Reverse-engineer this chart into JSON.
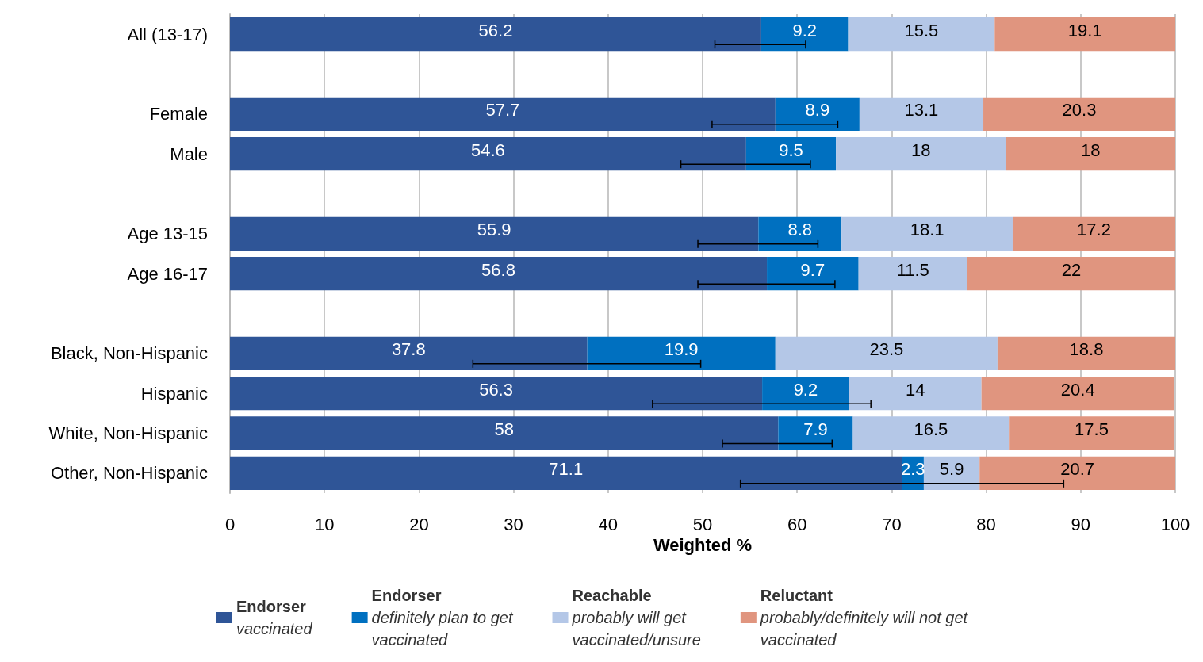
{
  "chart_data": {
    "type": "bar",
    "orientation": "horizontal",
    "stacked": true,
    "xlabel": "Weighted %",
    "categories": [
      "All (13-17)",
      null,
      "Female",
      "Male",
      null,
      "Age 13-15",
      "Age 16-17",
      null,
      "Black, Non-Hispanic",
      "Hispanic",
      "White, Non-Hispanic",
      "Other, Non-Hispanic"
    ],
    "series": [
      {
        "name": "Endorser\nvaccinated",
        "color": "#2f5597",
        "values": [
          56.2,
          null,
          57.7,
          54.6,
          null,
          55.9,
          56.8,
          null,
          37.8,
          56.3,
          58,
          71.1
        ],
        "errors": [
          [
            51.3,
            60.9
          ],
          null,
          [
            51.0,
            64.3
          ],
          [
            47.7,
            61.4
          ],
          null,
          [
            49.5,
            62.2
          ],
          [
            49.5,
            64.0
          ],
          null,
          [
            25.7,
            49.8
          ],
          [
            44.7,
            67.8
          ],
          [
            52.1,
            63.7
          ],
          [
            54.0,
            88.2
          ]
        ]
      },
      {
        "name": "Endorser\ndefinitely plan to get\nvaccinated",
        "color": "#0070c0",
        "values": [
          9.2,
          null,
          8.9,
          9.5,
          null,
          8.8,
          9.7,
          null,
          19.9,
          9.2,
          7.9,
          2.3
        ]
      },
      {
        "name": "Reachable\nprobably will get\nvaccinated/unsure",
        "color": "#b4c7e7",
        "values": [
          15.5,
          null,
          13.1,
          18,
          null,
          18.1,
          11.5,
          null,
          23.5,
          14,
          16.5,
          5.9
        ]
      },
      {
        "name": "Reluctant\nprobably/definitely will not get\nvaccinated",
        "color": "#e0957f",
        "values": [
          19.1,
          null,
          20.3,
          18,
          null,
          17.2,
          22,
          null,
          18.8,
          20.4,
          17.5,
          20.7
        ]
      }
    ],
    "xlim": [
      0,
      100
    ],
    "xticks": [
      0,
      10,
      20,
      30,
      40,
      50,
      60,
      70,
      80,
      90,
      100
    ],
    "grid": "x",
    "legend": "bottom",
    "data_labels": true
  }
}
